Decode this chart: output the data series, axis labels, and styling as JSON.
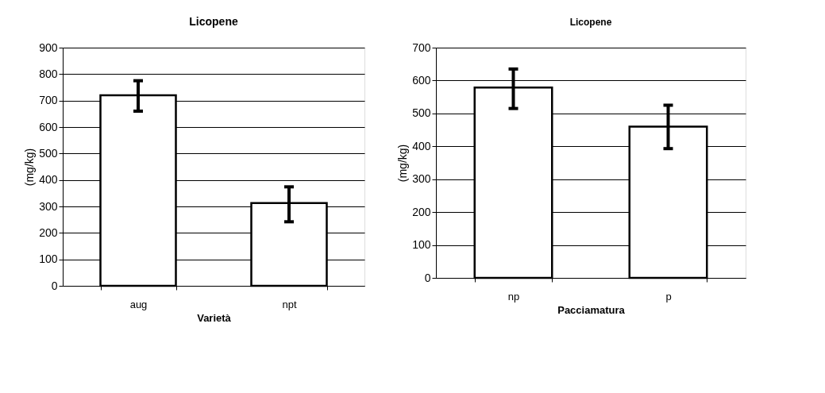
{
  "chart_data": [
    {
      "type": "bar",
      "title": "Licopene",
      "xlabel": "Varietà",
      "ylabel": "(mg/kg)",
      "categories": [
        "aug",
        "npt"
      ],
      "series": [
        {
          "color": "#ffffff",
          "values": [
            720,
            313
          ],
          "errors": [
            [
              660,
              775
            ],
            [
              242,
              374
            ]
          ]
        }
      ],
      "ylim": [
        0,
        900
      ],
      "yticks": [
        0,
        100,
        200,
        300,
        400,
        500,
        600,
        700,
        800,
        900
      ],
      "grid": "y"
    },
    {
      "type": "bar",
      "title": "Licopene",
      "xlabel": "Pacciamatura",
      "ylabel": "(mg/kg)",
      "categories": [
        "np",
        "p"
      ],
      "series": [
        {
          "color": "#ffffff",
          "values": [
            579,
            460
          ],
          "errors": [
            [
              515,
              635
            ],
            [
              393,
              525
            ]
          ]
        }
      ],
      "ylim": [
        0,
        700
      ],
      "yticks": [
        0,
        100,
        200,
        300,
        400,
        500,
        600,
        700
      ],
      "grid": "y"
    }
  ]
}
